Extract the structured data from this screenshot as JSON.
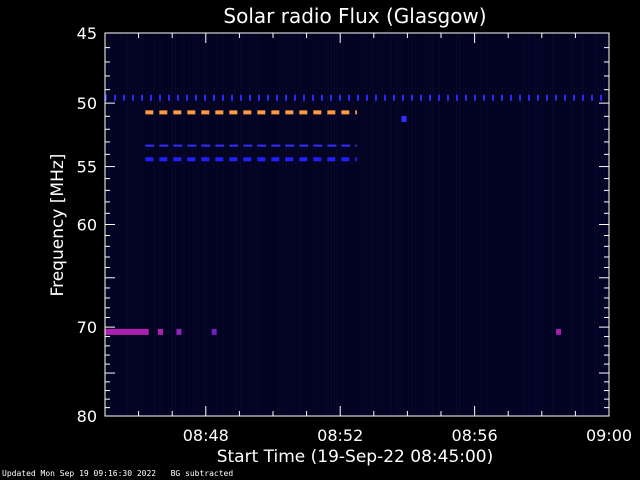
{
  "chart_data": {
    "type": "heatmap",
    "title": "Solar radio Flux (Glasgow)",
    "xlabel": "Start Time (19-Sep-22 08:45:00)",
    "ylabel": "Frequency [MHz]",
    "x_range_minutes": [
      0,
      15
    ],
    "y_range_mhz": [
      45,
      80
    ],
    "y_scale": "log",
    "x_ticks": [
      {
        "minute": 3,
        "label": "08:48"
      },
      {
        "minute": 7,
        "label": "08:52"
      },
      {
        "minute": 11,
        "label": "08:56"
      },
      {
        "minute": 15,
        "label": "09:00"
      }
    ],
    "y_ticks": [
      {
        "mhz": 45,
        "label": "45"
      },
      {
        "mhz": 50,
        "label": "50"
      },
      {
        "mhz": 55,
        "label": "55"
      },
      {
        "mhz": 60,
        "label": "60"
      },
      {
        "mhz": 70,
        "label": "70"
      },
      {
        "mhz": 80,
        "label": "80"
      }
    ],
    "background_color": "#02021e",
    "bands": [
      {
        "mhz": 49.6,
        "x_start": 0.0,
        "x_end": 15.0,
        "color": "#2a2aff",
        "style": "dotted"
      },
      {
        "mhz": 50.7,
        "x_start": 1.2,
        "x_end": 7.5,
        "color": "#ff9a40",
        "style": "dashed"
      },
      {
        "mhz": 53.3,
        "x_start": 1.2,
        "x_end": 7.5,
        "color": "#3030ff",
        "style": "dashed-thin"
      },
      {
        "mhz": 54.4,
        "x_start": 1.2,
        "x_end": 7.5,
        "color": "#2020ff",
        "style": "dashed"
      },
      {
        "mhz": 70.5,
        "x_start": 0.0,
        "x_end": 1.3,
        "color": "#b020b0",
        "style": "solid"
      }
    ],
    "spots": [
      {
        "minute": 8.9,
        "mhz": 51.2,
        "color": "#3030ff"
      },
      {
        "minute": 1.65,
        "mhz": 70.5,
        "color": "#b020b0"
      },
      {
        "minute": 2.2,
        "mhz": 70.5,
        "color": "#9020c0"
      },
      {
        "minute": 3.25,
        "mhz": 70.5,
        "color": "#7020c0"
      },
      {
        "minute": 13.5,
        "mhz": 70.5,
        "color": "#a020b0"
      }
    ]
  },
  "footer": {
    "updated": "Updated Mon Sep 19 09:16:30 2022",
    "note": "BG subtracted"
  }
}
